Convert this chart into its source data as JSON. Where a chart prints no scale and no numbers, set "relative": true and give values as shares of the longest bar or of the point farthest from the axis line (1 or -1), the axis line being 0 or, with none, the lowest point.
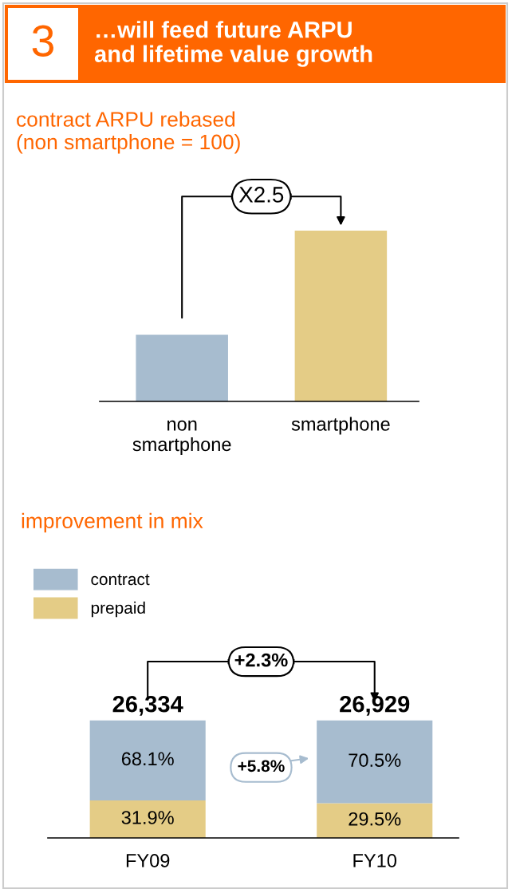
{
  "chart_data": [
    {
      "type": "bar",
      "title": "…will feed future ARPU\nand lifetime value growth",
      "subtitle": "contract ARPU rebased\n(non smartphone = 100)",
      "categories": [
        "non\nsmartphone",
        "smartphone"
      ],
      "relative": true,
      "series": [
        {
          "color": "#a7bccf",
          "colors": [
            "#a7bccf",
            "#e4cc86"
          ],
          "values": [
            0.39,
            1.0
          ]
        }
      ],
      "annotations": [
        "3",
        "X2.5"
      ],
      "grid": false
    },
    {
      "type": "bar",
      "title": "improvement in mix",
      "categories": [
        "FY09",
        "FY10"
      ],
      "stacked": true,
      "tick_labels": "x",
      "series": [
        {
          "name": "prepaid",
          "color": "#e4cc86",
          "values": [
            31.9,
            29.5
          ],
          "value_labels": [
            "31.9%",
            "29.5%"
          ]
        },
        {
          "name": "contract",
          "color": "#a7bccf",
          "values": [
            68.1,
            70.5
          ],
          "value_labels": [
            "68.1%",
            "70.5%"
          ]
        }
      ],
      "annotations": [
        "+2.3%",
        "+5.8%",
        {
          "text": "26,334",
          "x": "FY09",
          "y": 100
        },
        {
          "text": "26,929",
          "x": "FY10",
          "y": 100
        }
      ],
      "grid": false,
      "legend": "top left"
    }
  ]
}
